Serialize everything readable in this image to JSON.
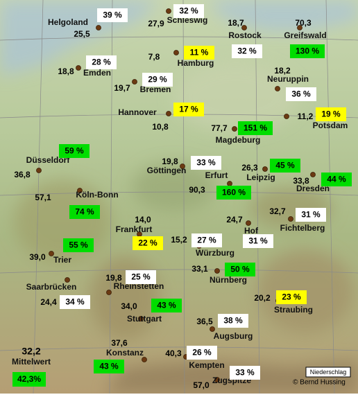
{
  "stations": [
    {
      "name": "Helgoland",
      "value": "25,5",
      "percent": "39 %",
      "color": "#ffffff"
    },
    {
      "name": "Schleswig",
      "value": "27,9",
      "percent": "32 %",
      "color": "#ffffff"
    },
    {
      "name": "Rostock",
      "value": "18,7",
      "percent": "32 %",
      "color": "#ffffff"
    },
    {
      "name": "Greifswald",
      "value": "70,3",
      "percent": "130 %",
      "color": "#00dd00"
    },
    {
      "name": "Emden",
      "value": "18,8",
      "percent": "28 %",
      "color": "#ffffff"
    },
    {
      "name": "Hamburg",
      "value": "7,8",
      "percent": "11 %",
      "color": "#ffff00"
    },
    {
      "name": "Bremen",
      "value": "19,7",
      "percent": "29 %",
      "color": "#ffffff"
    },
    {
      "name": "Neuruppin",
      "value": "18,2",
      "percent": "36 %",
      "color": "#ffffff"
    },
    {
      "name": "Hannover",
      "value": "10,8",
      "percent": "17 %",
      "color": "#ffff00"
    },
    {
      "name": "Potsdam",
      "value": "11,2",
      "percent": "19 %",
      "color": "#ffff00"
    },
    {
      "name": "Magdeburg",
      "value": "77,7",
      "percent": "151 %",
      "color": "#00dd00"
    },
    {
      "name": "Düsseldorf",
      "value": "36,8",
      "percent": "59 %",
      "color": "#00dd00"
    },
    {
      "name": "Göttingen",
      "value": "19,8",
      "percent": "33 %",
      "color": "#ffffff"
    },
    {
      "name": "Erfurt",
      "value": "90,3",
      "percent": "160 %",
      "color": "#00dd00"
    },
    {
      "name": "Leipzig",
      "value": "26,3",
      "percent": "45 %",
      "color": "#00dd00"
    },
    {
      "name": "Dresden",
      "value": "33,8",
      "percent": "44 %",
      "color": "#00dd00"
    },
    {
      "name": "Köln-Bonn",
      "value": "57,1",
      "percent": "74 %",
      "color": "#00dd00"
    },
    {
      "name": "Frankfurt",
      "value": "14,0",
      "percent": "22 %",
      "color": "#ffff00"
    },
    {
      "name": "Hof",
      "value": "24,7",
      "percent": "31 %",
      "color": "#ffffff"
    },
    {
      "name": "Fichtelberg",
      "value": "32,7",
      "percent": "31 %",
      "color": "#ffffff"
    },
    {
      "name": "Trier",
      "value": "39,0",
      "percent": "55 %",
      "color": "#00dd00"
    },
    {
      "name": "Würzburg",
      "value": "15,2",
      "percent": "27 %",
      "color": "#ffffff"
    },
    {
      "name": "Saarbrücken",
      "value": "24,4",
      "percent": "34 %",
      "color": "#ffffff"
    },
    {
      "name": "Rheinstetten",
      "value": "19,8",
      "percent": "25 %",
      "color": "#ffffff"
    },
    {
      "name": "Nürnberg",
      "value": "33,1",
      "percent": "50 %",
      "color": "#00dd00"
    },
    {
      "name": "Straubing",
      "value": "20,2",
      "percent": "23 %",
      "color": "#ffff00"
    },
    {
      "name": "Stuttgart",
      "value": "34,0",
      "percent": "43 %",
      "color": "#00dd00"
    },
    {
      "name": "Augsburg",
      "value": "36,5",
      "percent": "38 %",
      "color": "#ffffff"
    },
    {
      "name": "Konstanz",
      "value": "37,6",
      "percent": "43 %",
      "color": "#00dd00"
    },
    {
      "name": "Kempten",
      "value": "40,3",
      "percent": "26 %",
      "color": "#ffffff"
    },
    {
      "name": "Zugspitze",
      "value": "57,0",
      "percent": "33 %",
      "color": "#ffffff"
    }
  ],
  "mean": {
    "value": "32,2",
    "label": "Mittelwert",
    "percent": "42,3%",
    "color": "#00dd00"
  },
  "legend": "Niederschlag",
  "credit": "© Bernd Hussing"
}
